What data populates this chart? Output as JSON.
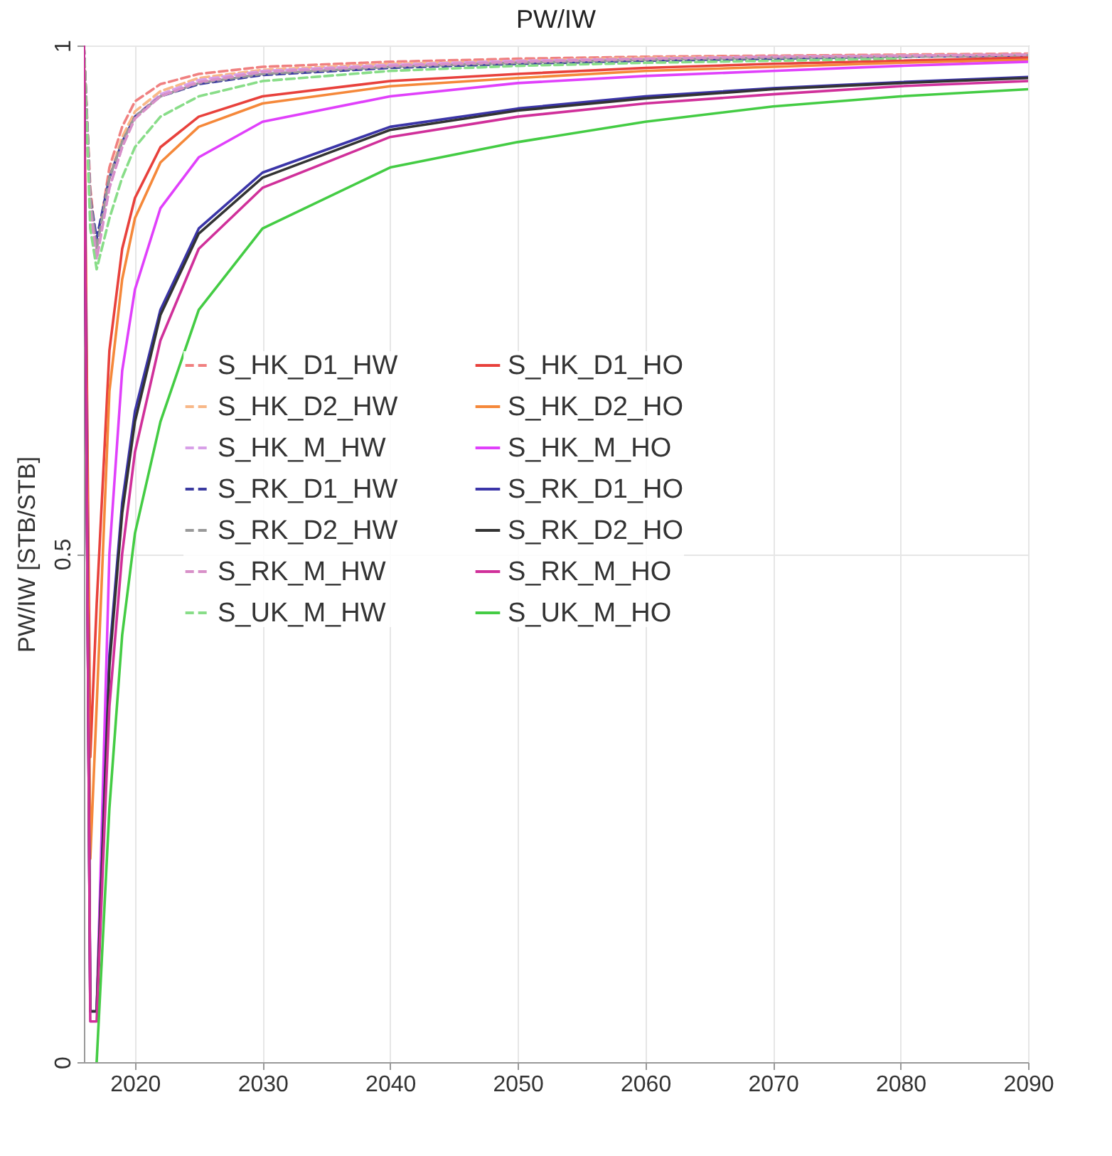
{
  "chart_data": {
    "type": "line",
    "title": "PW/IW",
    "ylabel": "PW/IW [STB/STB]",
    "xlim": [
      2016,
      2090
    ],
    "xticks": [
      2020,
      2030,
      2040,
      2050,
      2060,
      2070,
      2080,
      {
        "value": 2090,
        "label": "2090"
      }
    ],
    "ylim": [
      0,
      1
    ],
    "yticks": [
      0,
      0.5,
      1
    ],
    "grid": true,
    "legend": "left",
    "x": [
      2016,
      2016.5,
      2017,
      2018,
      2019,
      2020,
      2022,
      2025,
      2030,
      2040,
      2050,
      2060,
      2070,
      2080,
      2090
    ],
    "series": [
      {
        "name": "S_HK_D1_HW",
        "color": "#f08080",
        "line_style": "dashed",
        "values": [
          1,
          0.86,
          0.8,
          0.88,
          0.92,
          0.945,
          0.962,
          0.972,
          0.979,
          0.984,
          0.987,
          0.989,
          0.99,
          0.991,
          0.992
        ]
      },
      {
        "name": "S_HK_D2_HW",
        "color": "#f8b888",
        "line_style": "dashed",
        "values": [
          1,
          0.85,
          0.8,
          0.87,
          0.91,
          0.935,
          0.955,
          0.968,
          0.976,
          0.982,
          0.985,
          0.988,
          0.989,
          0.99,
          0.991
        ]
      },
      {
        "name": "S_HK_M_HW",
        "color": "#d8a0e8",
        "line_style": "dashed",
        "values": [
          1,
          0.84,
          0.79,
          0.86,
          0.9,
          0.93,
          0.952,
          0.966,
          0.975,
          0.981,
          0.985,
          0.987,
          0.989,
          0.99,
          0.991
        ]
      },
      {
        "name": "S_RK_D1_HW",
        "color": "#3b3ba0",
        "line_style": "dashed",
        "values": [
          1,
          0.85,
          0.81,
          0.87,
          0.905,
          0.93,
          0.95,
          0.962,
          0.971,
          0.978,
          0.982,
          0.985,
          0.987,
          0.989,
          0.99
        ]
      },
      {
        "name": "S_RK_D2_HW",
        "color": "#999999",
        "line_style": "dashed",
        "values": [
          1,
          0.85,
          0.8,
          0.87,
          0.905,
          0.93,
          0.95,
          0.963,
          0.972,
          0.979,
          0.983,
          0.986,
          0.988,
          0.989,
          0.99
        ]
      },
      {
        "name": "S_RK_M_HW",
        "color": "#d890c8",
        "line_style": "dashed",
        "values": [
          1,
          0.84,
          0.79,
          0.86,
          0.9,
          0.928,
          0.95,
          0.964,
          0.974,
          0.98,
          0.984,
          0.987,
          0.989,
          0.99,
          0.991
        ]
      },
      {
        "name": "S_UK_M_HW",
        "color": "#88dd88",
        "line_style": "dashed",
        "values": [
          1,
          0.82,
          0.78,
          0.83,
          0.87,
          0.9,
          0.93,
          0.95,
          0.965,
          0.975,
          0.98,
          0.983,
          0.985,
          0.987,
          null
        ]
      },
      {
        "name": "S_HK_D1_HO",
        "color": "#e8413c",
        "line_style": "solid",
        "values": [
          1,
          0.3,
          0.45,
          0.7,
          0.8,
          0.85,
          0.9,
          0.93,
          0.95,
          0.965,
          0.972,
          0.978,
          0.982,
          0.985,
          0.988
        ]
      },
      {
        "name": "S_HK_D2_HO",
        "color": "#f5883a",
        "line_style": "solid",
        "values": [
          1,
          0.2,
          0.35,
          0.66,
          0.77,
          0.83,
          0.885,
          0.92,
          0.943,
          0.96,
          0.968,
          0.975,
          0.979,
          0.983,
          0.986
        ]
      },
      {
        "name": "S_HK_M_HO",
        "color": "#e040fb",
        "line_style": "solid",
        "values": [
          1,
          0.05,
          0.05,
          0.5,
          0.68,
          0.76,
          0.84,
          0.89,
          0.925,
          0.95,
          0.963,
          0.97,
          0.975,
          0.98,
          0.984
        ]
      },
      {
        "name": "S_RK_D1_HO",
        "color": "#3b35a8",
        "line_style": "solid",
        "values": [
          1,
          0.05,
          0.05,
          0.4,
          0.55,
          0.64,
          0.74,
          0.82,
          0.875,
          0.92,
          0.938,
          0.95,
          0.958,
          0.964,
          0.969
        ]
      },
      {
        "name": "S_RK_D2_HO",
        "color": "#333333",
        "line_style": "solid",
        "values": [
          1,
          0.05,
          0.05,
          0.39,
          0.54,
          0.63,
          0.735,
          0.815,
          0.87,
          0.917,
          0.936,
          0.948,
          0.957,
          0.963,
          0.968
        ]
      },
      {
        "name": "S_RK_M_HO",
        "color": "#d0309a",
        "line_style": "solid",
        "values": [
          1,
          0.04,
          0.04,
          0.35,
          0.5,
          0.6,
          0.71,
          0.8,
          0.86,
          0.91,
          0.93,
          0.943,
          0.952,
          0.96,
          0.965
        ]
      },
      {
        "name": "S_UK_M_HO",
        "color": "#44cc44",
        "line_style": "solid",
        "values": [
          null,
          null,
          0,
          0.25,
          0.42,
          0.52,
          0.63,
          0.74,
          0.82,
          0.88,
          0.905,
          0.925,
          0.94,
          0.95,
          0.957
        ]
      }
    ]
  }
}
